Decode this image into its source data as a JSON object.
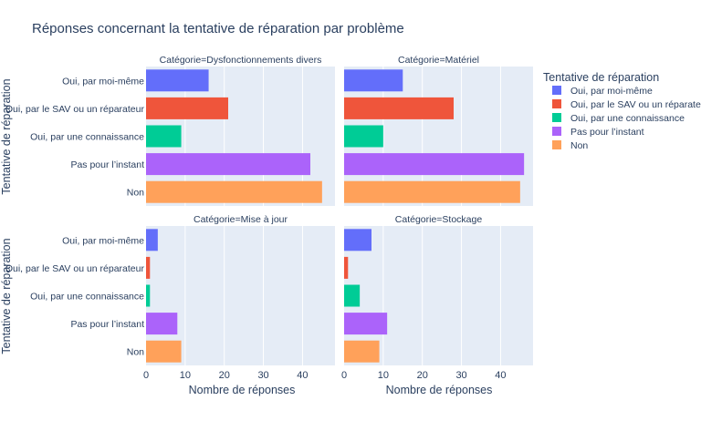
{
  "chart_data": {
    "type": "bar",
    "orientation": "horizontal",
    "title": "Réponses concernant la tentative de réparation par problème",
    "xlabel": "Nombre de réponses",
    "ylabel": "Tentative de réparation",
    "xlim": [
      0,
      48.3
    ],
    "xticks": [
      0,
      10,
      20,
      30,
      40
    ],
    "grid": true,
    "legend_title": "Tentative de réparation",
    "legend_position": "right",
    "categories": [
      "Oui, par moi-même",
      "Oui, par le SAV ou un réparateur",
      "Oui, par une connaissance",
      "Pas pour l’instant",
      "Non"
    ],
    "colors": [
      "#636efa",
      "#ef553b",
      "#00cc96",
      "#ab63fa",
      "#ffa15a"
    ],
    "facets": [
      {
        "title": "Catégorie=Dysfonctionnements divers",
        "values": [
          16,
          21,
          9,
          42,
          45
        ]
      },
      {
        "title": "Catégorie=Matériel",
        "values": [
          15,
          28,
          10,
          46,
          45
        ]
      },
      {
        "title": "Catégorie=Mise à jour",
        "values": [
          3,
          1,
          1,
          8,
          9
        ]
      },
      {
        "title": "Catégorie=Stockage",
        "values": [
          7,
          1,
          4,
          11,
          9
        ]
      }
    ]
  }
}
